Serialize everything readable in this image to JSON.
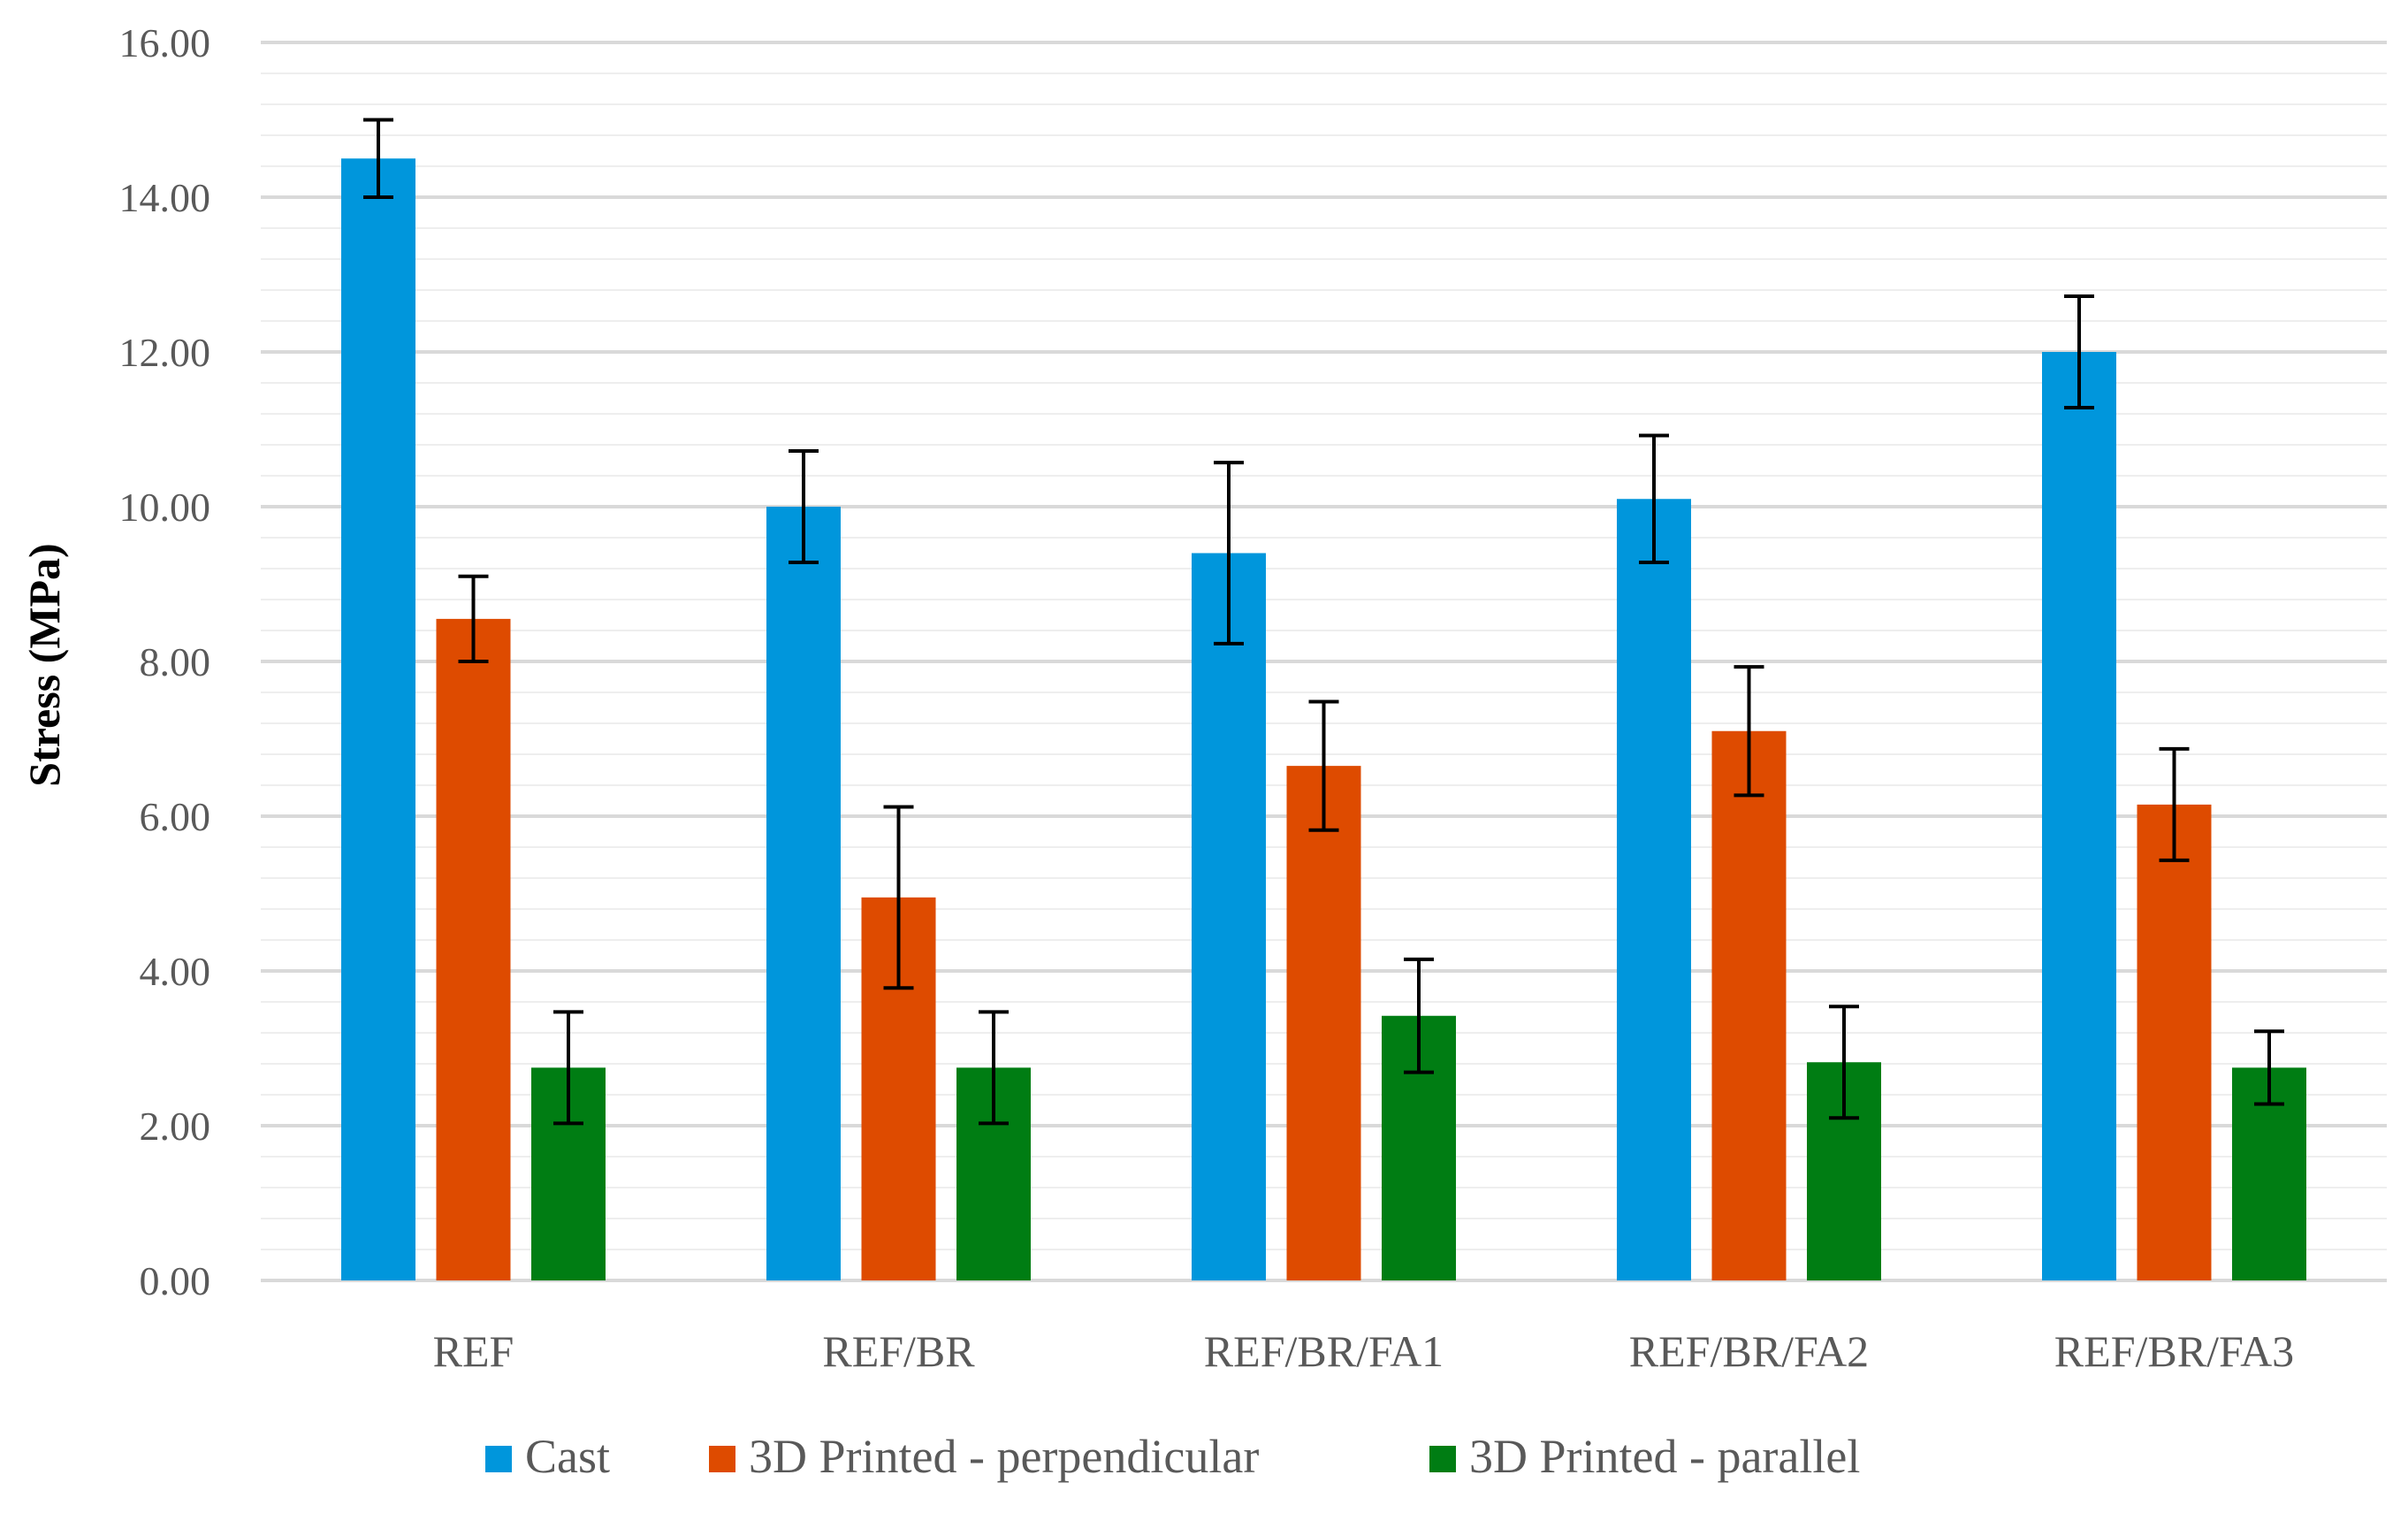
{
  "chart_data": {
    "type": "bar",
    "title": "",
    "xlabel": "",
    "ylabel": "Stress (MPa)",
    "ylim": [
      0,
      16
    ],
    "y_major_step": 2,
    "y_minor_step": 0.4,
    "y_tick_labels": [
      "0.00",
      "2.00",
      "4.00",
      "6.00",
      "8.00",
      "10.00",
      "12.00",
      "14.00",
      "16.00"
    ],
    "grid": true,
    "legend_position": "bottom-center",
    "categories": [
      "REF",
      "REF/BR",
      "REF/BR/FA1",
      "REF/BR/FA2",
      "REF/BR/FA3"
    ],
    "series": [
      {
        "name": "Cast",
        "color": "#0096DC",
        "values": [
          14.5,
          10.0,
          9.4,
          10.1,
          12.0
        ],
        "errors": [
          0.5,
          0.72,
          1.17,
          0.82,
          0.72
        ]
      },
      {
        "name": "3D Printed - perpendicular",
        "color": "#DE4B00",
        "values": [
          8.55,
          4.95,
          6.65,
          7.1,
          6.15
        ],
        "errors": [
          0.55,
          1.17,
          0.83,
          0.83,
          0.72
        ]
      },
      {
        "name": "3D Printed - parallel",
        "color": "#007D13",
        "values": [
          2.75,
          2.75,
          3.42,
          2.82,
          2.75
        ],
        "errors": [
          0.72,
          0.72,
          0.73,
          0.72,
          0.47
        ]
      }
    ]
  }
}
